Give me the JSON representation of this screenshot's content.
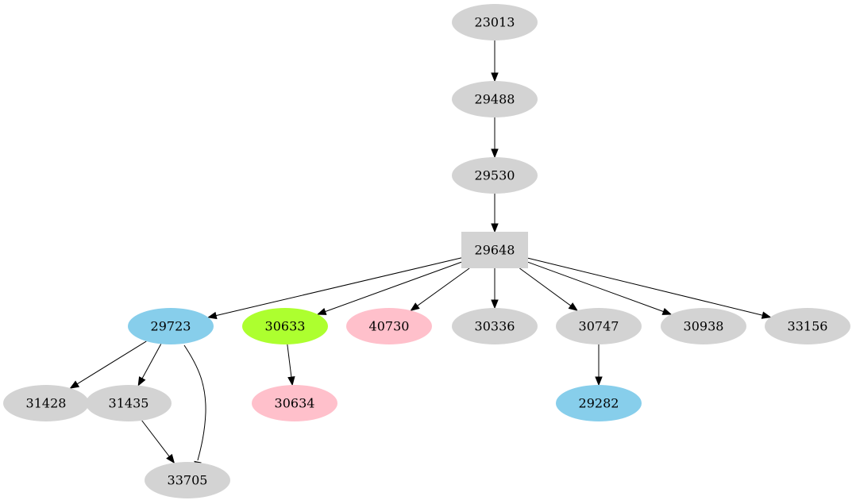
{
  "nodes": [
    {
      "id": "23013",
      "label": "23013",
      "shape": "ellipse",
      "color": "#d3d3d3"
    },
    {
      "id": "29488",
      "label": "29488",
      "shape": "ellipse",
      "color": "#d3d3d3"
    },
    {
      "id": "29530",
      "label": "29530",
      "shape": "ellipse",
      "color": "#d3d3d3"
    },
    {
      "id": "29648",
      "label": "29648",
      "shape": "box",
      "color": "#d3d3d3"
    },
    {
      "id": "29723",
      "label": "29723",
      "shape": "ellipse",
      "color": "#87ceeb"
    },
    {
      "id": "30633",
      "label": "30633",
      "shape": "ellipse",
      "color": "#adff2f"
    },
    {
      "id": "40730",
      "label": "40730",
      "shape": "ellipse",
      "color": "#ffc0cb"
    },
    {
      "id": "30336",
      "label": "30336",
      "shape": "ellipse",
      "color": "#d3d3d3"
    },
    {
      "id": "30747",
      "label": "30747",
      "shape": "ellipse",
      "color": "#d3d3d3"
    },
    {
      "id": "30938",
      "label": "30938",
      "shape": "ellipse",
      "color": "#d3d3d3"
    },
    {
      "id": "33156",
      "label": "33156",
      "shape": "ellipse",
      "color": "#d3d3d3"
    },
    {
      "id": "31428",
      "label": "31428",
      "shape": "ellipse",
      "color": "#d3d3d3"
    },
    {
      "id": "31435",
      "label": "31435",
      "shape": "ellipse",
      "color": "#d3d3d3"
    },
    {
      "id": "30634",
      "label": "30634",
      "shape": "ellipse",
      "color": "#ffc0cb"
    },
    {
      "id": "29282",
      "label": "29282",
      "shape": "ellipse",
      "color": "#87ceeb"
    },
    {
      "id": "33705",
      "label": "33705",
      "shape": "ellipse",
      "color": "#d3d3d3"
    }
  ],
  "edges": [
    [
      "23013",
      "29488"
    ],
    [
      "29488",
      "29530"
    ],
    [
      "29530",
      "29648"
    ],
    [
      "29648",
      "29723"
    ],
    [
      "29648",
      "30633"
    ],
    [
      "29648",
      "40730"
    ],
    [
      "29648",
      "30336"
    ],
    [
      "29648",
      "30747"
    ],
    [
      "29648",
      "30938"
    ],
    [
      "29648",
      "33156"
    ],
    [
      "29723",
      "31428"
    ],
    [
      "29723",
      "31435"
    ],
    [
      "29723",
      "33705"
    ],
    [
      "31435",
      "33705"
    ],
    [
      "30633",
      "30634"
    ],
    [
      "30747",
      "29282"
    ]
  ]
}
